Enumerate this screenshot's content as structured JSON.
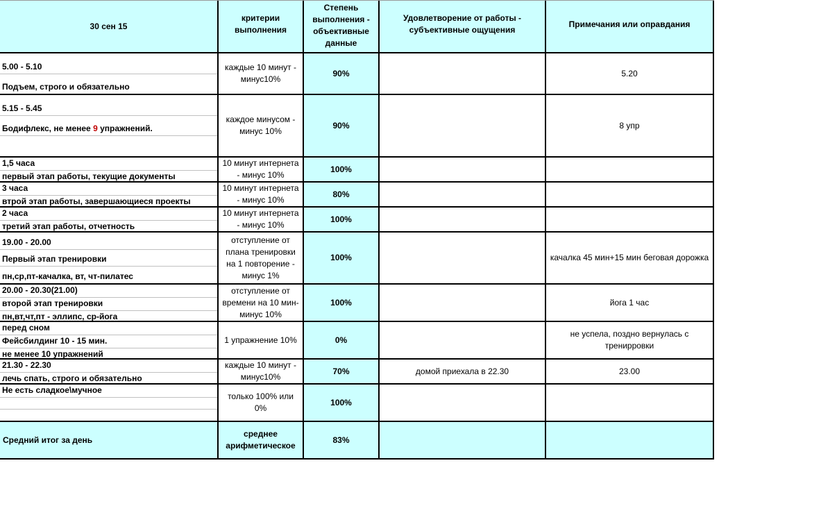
{
  "header": {
    "date": "30 сен 15",
    "criteria": "критерии выполнения",
    "degree": "Степень выполнения - объективные данные",
    "satisfaction": "Удовлетворение от работы - субъективные ощущения",
    "notes": "Примечания или оправдания"
  },
  "rows": [
    {
      "lines": [
        "5.00 - 5.10",
        "Подъем, строго и обязательно"
      ],
      "criteria": "каждые 10 минут - минус10%",
      "degree": "90%",
      "satisfaction": "",
      "notes": "5.20"
    },
    {
      "lines": [
        "5.15 - 5.45",
        "",
        ""
      ],
      "line2_pre": "Бодифлекс, не менее ",
      "line2_num": "9",
      "line2_post": " упражнений.",
      "criteria": "каждое минусом - минус 10%",
      "degree": "90%",
      "satisfaction": "",
      "notes": "8 упр"
    },
    {
      "lines": [
        "1,5 часа",
        "первый этап работы, текущие документы"
      ],
      "criteria": "10 минут интернета - минус 10%",
      "degree": "100%",
      "satisfaction": "",
      "notes": ""
    },
    {
      "lines": [
        "3 часа",
        "втрой этап работы, завершающиеся проекты"
      ],
      "criteria": "10 минут интернета - минус 10%",
      "degree": "80%",
      "satisfaction": "",
      "notes": ""
    },
    {
      "lines": [
        "2 часа",
        "третий этап работы, отчетность"
      ],
      "criteria": "10 минут интернета - минус 10%",
      "degree": "100%",
      "satisfaction": "",
      "notes": ""
    },
    {
      "lines": [
        "19.00 - 20.00",
        "Первый этап тренировки",
        "пн,ср,пт-качалка, вт, чт-пилатес"
      ],
      "criteria": "отступление от плана тренировки на 1 повторение - минус 1%",
      "degree": "100%",
      "satisfaction": "",
      "notes": "качалка 45 мин+15 мин беговая дорожка"
    },
    {
      "lines": [
        "20.00 - 20.30(21.00)",
        "второй этап тренировки",
        "пн,вт,чт,пт - эллипс, ср-йога"
      ],
      "criteria": "отступление от времени на 10 мин-минус 10%",
      "degree": "100%",
      "satisfaction": "",
      "notes": "йога 1 час"
    },
    {
      "lines": [
        "перед сном",
        "Фейсбилдинг 10 - 15 мин.",
        "не менее 10 упражнений"
      ],
      "criteria": "1 упражнение 10%",
      "degree": "0%",
      "satisfaction": "",
      "notes": "не успела, поздно вернулась с тренирровки"
    },
    {
      "lines": [
        "21.30 - 22.30",
        "лечь спать, строго и обязательно"
      ],
      "criteria": "каждые 10 минут - минус10%",
      "degree": "70%",
      "satisfaction": "домой приехала в 22.30",
      "notes": "23.00"
    },
    {
      "lines": [
        "Не есть сладкое\\мучное",
        "",
        ""
      ],
      "criteria": "только 100% или 0%",
      "degree": "100%",
      "satisfaction": "",
      "notes": ""
    }
  ],
  "total": {
    "label": "Средний итог за день",
    "criteria": "среднее арифметическое",
    "degree": "83%",
    "satisfaction": "",
    "notes": ""
  },
  "colors": {
    "highlight": "#ccffff",
    "accent_red": "#c00000"
  }
}
